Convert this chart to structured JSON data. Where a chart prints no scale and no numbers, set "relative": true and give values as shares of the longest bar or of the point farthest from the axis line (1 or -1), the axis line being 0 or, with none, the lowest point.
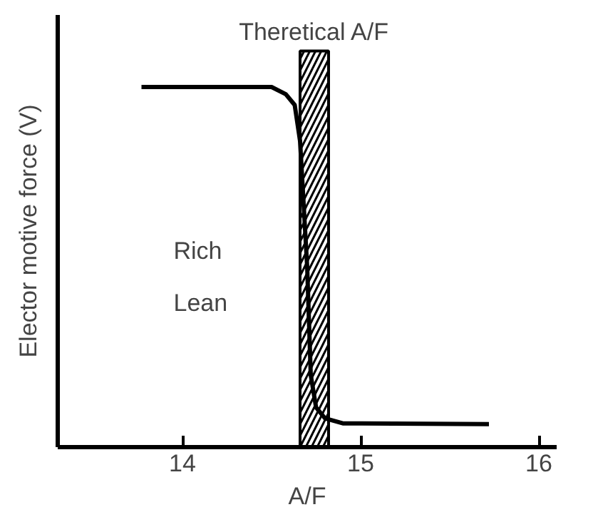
{
  "chart_data": {
    "type": "line",
    "xlabel": "A/F",
    "ylabel": "Elector motive force (V)",
    "relative": true,
    "x": [
      13.77,
      14.5,
      14.58,
      14.63,
      14.66,
      14.7,
      14.72,
      14.75,
      14.8,
      14.9,
      15.72
    ],
    "series": [
      {
        "color": "#000000",
        "values": [
          1,
          1,
          0.98,
          0.95,
          0.85,
          0.5,
          0.2,
          0.11,
          0.08,
          0.066,
          0.064
        ]
      }
    ],
    "xlim": [
      13.3,
      16.1
    ],
    "xticks": [
      14,
      15,
      16
    ],
    "bands": [
      {
        "axis": "x",
        "from": 14.66,
        "to": 14.82,
        "label": "Theretical A/F",
        "color": "#000000"
      }
    ],
    "annotations": [
      "Rich",
      "Lean"
    ],
    "grid": false,
    "line_style": "solid"
  }
}
